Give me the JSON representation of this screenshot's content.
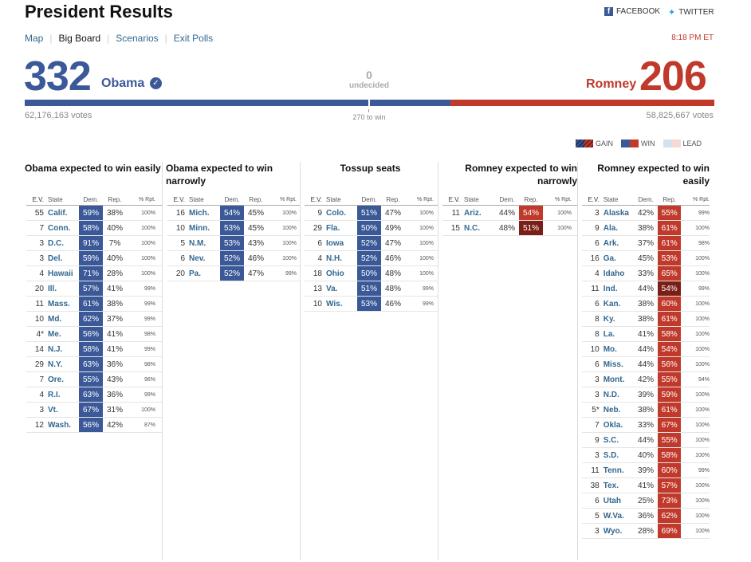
{
  "page": {
    "title": "President Results"
  },
  "share": {
    "facebook": "FACEBOOK",
    "twitter": "TWITTER"
  },
  "nav": {
    "map": "Map",
    "big_board": "Big Board",
    "scenarios": "Scenarios",
    "exit_polls": "Exit Polls",
    "time": "8:18 PM ET"
  },
  "summary": {
    "obama_ev": "332",
    "obama_name": "Obama",
    "obama_votes": "62,176,163 votes",
    "romney_ev": "206",
    "romney_name": "Romney",
    "romney_votes": "58,825,667 votes",
    "undecided_count": "0",
    "undecided_label": "undecided",
    "to_win": "270 to win"
  },
  "legend": {
    "gain": "GAIN",
    "win": "WIN",
    "lead": "LEAD"
  },
  "colors": {
    "dem": "#3b5998",
    "rep": "#c0392b",
    "gain_rep": "#7a1f17"
  },
  "headers": {
    "ev": "E.V.",
    "state": "State",
    "dem": "Dem.",
    "rep": "Rep.",
    "rpt": "% Rpt."
  },
  "columns": [
    {
      "title": "Obama expected to win easily",
      "align": "left",
      "rows": [
        [
          "55",
          "Calif.",
          "59%",
          "38%",
          "100%",
          "dw",
          ""
        ],
        [
          "7",
          "Conn.",
          "58%",
          "40%",
          "100%",
          "dw",
          ""
        ],
        [
          "3",
          "D.C.",
          "91%",
          "7%",
          "100%",
          "dw",
          ""
        ],
        [
          "3",
          "Del.",
          "59%",
          "40%",
          "100%",
          "dw",
          ""
        ],
        [
          "4",
          "Hawaii",
          "71%",
          "28%",
          "100%",
          "dw",
          ""
        ],
        [
          "20",
          "Ill.",
          "57%",
          "41%",
          "99%",
          "dw",
          ""
        ],
        [
          "11",
          "Mass.",
          "61%",
          "38%",
          "99%",
          "dw",
          ""
        ],
        [
          "10",
          "Md.",
          "62%",
          "37%",
          "99%",
          "dw",
          ""
        ],
        [
          "4*",
          "Me.",
          "56%",
          "41%",
          "98%",
          "dw",
          ""
        ],
        [
          "14",
          "N.J.",
          "58%",
          "41%",
          "99%",
          "dw",
          ""
        ],
        [
          "29",
          "N.Y.",
          "63%",
          "36%",
          "98%",
          "dw",
          ""
        ],
        [
          "7",
          "Ore.",
          "55%",
          "43%",
          "96%",
          "dw",
          ""
        ],
        [
          "4",
          "R.I.",
          "63%",
          "36%",
          "99%",
          "dw",
          ""
        ],
        [
          "3",
          "Vt.",
          "67%",
          "31%",
          "100%",
          "dw",
          ""
        ],
        [
          "12",
          "Wash.",
          "56%",
          "42%",
          "87%",
          "dw",
          ""
        ]
      ]
    },
    {
      "title": "Obama expected to win narrowly",
      "align": "left",
      "rows": [
        [
          "16",
          "Mich.",
          "54%",
          "45%",
          "100%",
          "dw",
          ""
        ],
        [
          "10",
          "Minn.",
          "53%",
          "45%",
          "100%",
          "dw",
          ""
        ],
        [
          "5",
          "N.M.",
          "53%",
          "43%",
          "100%",
          "dw",
          ""
        ],
        [
          "6",
          "Nev.",
          "52%",
          "46%",
          "100%",
          "dw",
          ""
        ],
        [
          "20",
          "Pa.",
          "52%",
          "47%",
          "99%",
          "dw",
          ""
        ]
      ]
    },
    {
      "title": "Tossup seats",
      "align": "center",
      "rows": [
        [
          "9",
          "Colo.",
          "51%",
          "47%",
          "100%",
          "dw",
          ""
        ],
        [
          "29",
          "Fla.",
          "50%",
          "49%",
          "100%",
          "dw",
          ""
        ],
        [
          "6",
          "Iowa",
          "52%",
          "47%",
          "100%",
          "dw",
          ""
        ],
        [
          "4",
          "N.H.",
          "52%",
          "46%",
          "100%",
          "dw",
          ""
        ],
        [
          "18",
          "Ohio",
          "50%",
          "48%",
          "100%",
          "dw",
          ""
        ],
        [
          "13",
          "Va.",
          "51%",
          "48%",
          "99%",
          "dw",
          ""
        ],
        [
          "10",
          "Wis.",
          "53%",
          "46%",
          "99%",
          "dw",
          ""
        ]
      ]
    },
    {
      "title": "Romney expected to win narrowly",
      "align": "right",
      "rows": [
        [
          "11",
          "Ariz.",
          "44%",
          "54%",
          "100%",
          "",
          "rw"
        ],
        [
          "15",
          "N.C.",
          "48%",
          "51%",
          "100%",
          "",
          "rg"
        ]
      ]
    },
    {
      "title": "Romney expected to win easily",
      "align": "right",
      "rows": [
        [
          "3",
          "Alaska",
          "42%",
          "55%",
          "99%",
          "",
          "rw"
        ],
        [
          "9",
          "Ala.",
          "38%",
          "61%",
          "100%",
          "",
          "rw"
        ],
        [
          "6",
          "Ark.",
          "37%",
          "61%",
          "98%",
          "",
          "rw"
        ],
        [
          "16",
          "Ga.",
          "45%",
          "53%",
          "100%",
          "",
          "rw"
        ],
        [
          "4",
          "Idaho",
          "33%",
          "65%",
          "100%",
          "",
          "rw"
        ],
        [
          "11",
          "Ind.",
          "44%",
          "54%",
          "99%",
          "",
          "rg"
        ],
        [
          "6",
          "Kan.",
          "38%",
          "60%",
          "100%",
          "",
          "rw"
        ],
        [
          "8",
          "Ky.",
          "38%",
          "61%",
          "100%",
          "",
          "rw"
        ],
        [
          "8",
          "La.",
          "41%",
          "58%",
          "100%",
          "",
          "rw"
        ],
        [
          "10",
          "Mo.",
          "44%",
          "54%",
          "100%",
          "",
          "rw"
        ],
        [
          "6",
          "Miss.",
          "44%",
          "56%",
          "100%",
          "",
          "rw"
        ],
        [
          "3",
          "Mont.",
          "42%",
          "55%",
          "94%",
          "",
          "rw"
        ],
        [
          "3",
          "N.D.",
          "39%",
          "59%",
          "100%",
          "",
          "rw"
        ],
        [
          "5*",
          "Neb.",
          "38%",
          "61%",
          "100%",
          "",
          "rw"
        ],
        [
          "7",
          "Okla.",
          "33%",
          "67%",
          "100%",
          "",
          "rw"
        ],
        [
          "9",
          "S.C.",
          "44%",
          "55%",
          "100%",
          "",
          "rw"
        ],
        [
          "3",
          "S.D.",
          "40%",
          "58%",
          "100%",
          "",
          "rw"
        ],
        [
          "11",
          "Tenn.",
          "39%",
          "60%",
          "99%",
          "",
          "rw"
        ],
        [
          "38",
          "Tex.",
          "41%",
          "57%",
          "100%",
          "",
          "rw"
        ],
        [
          "6",
          "Utah",
          "25%",
          "73%",
          "100%",
          "",
          "rw"
        ],
        [
          "5",
          "W.Va.",
          "36%",
          "62%",
          "100%",
          "",
          "rw"
        ],
        [
          "3",
          "Wyo.",
          "28%",
          "69%",
          "100%",
          "",
          "rw"
        ]
      ]
    }
  ]
}
